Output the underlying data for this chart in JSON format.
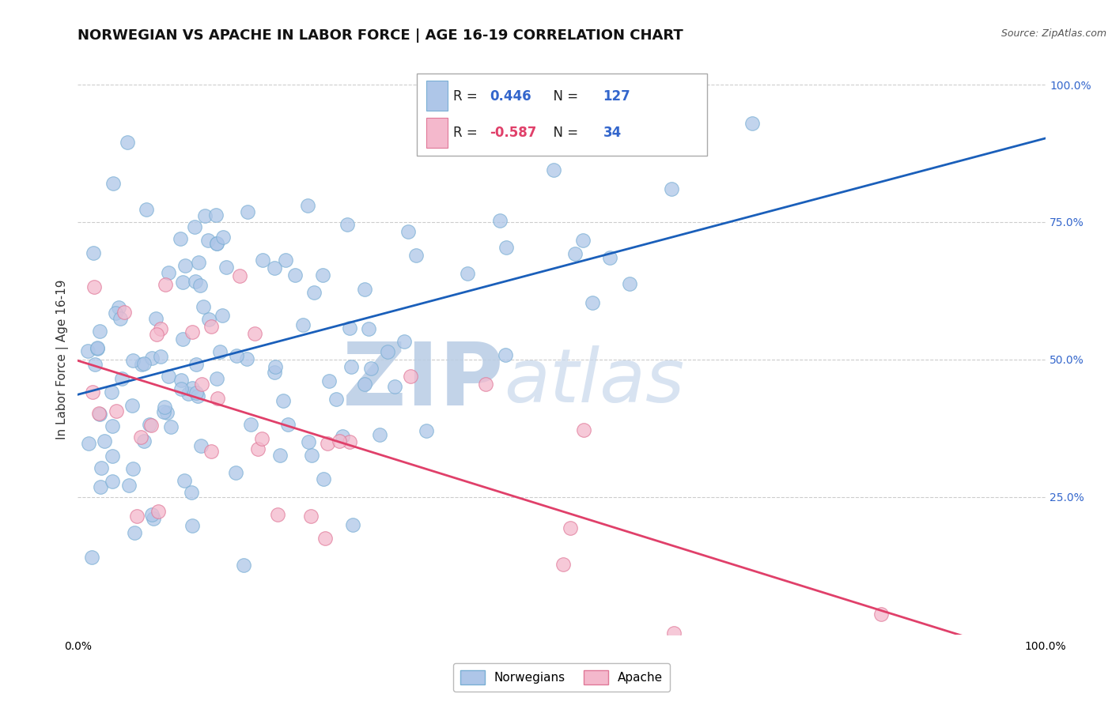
{
  "title": "NORWEGIAN VS APACHE IN LABOR FORCE | AGE 16-19 CORRELATION CHART",
  "source": "Source: ZipAtlas.com",
  "ylabel": "In Labor Force | Age 16-19",
  "blue_R": 0.446,
  "blue_N": 127,
  "pink_R": -0.587,
  "pink_N": 34,
  "blue_color": "#aec6e8",
  "blue_edge": "#7aafd4",
  "pink_color": "#f4b8cc",
  "pink_edge": "#e07898",
  "blue_line_color": "#1a5fba",
  "pink_line_color": "#e0406a",
  "grid_color": "#cccccc",
  "watermark_color": "#ccddef",
  "background_color": "#ffffff",
  "legend_label_blue": "Norwegians",
  "legend_label_pink": "Apache",
  "title_fontsize": 13,
  "axis_label_fontsize": 11,
  "tick_fontsize": 10,
  "right_tick_color": "#3366cc"
}
